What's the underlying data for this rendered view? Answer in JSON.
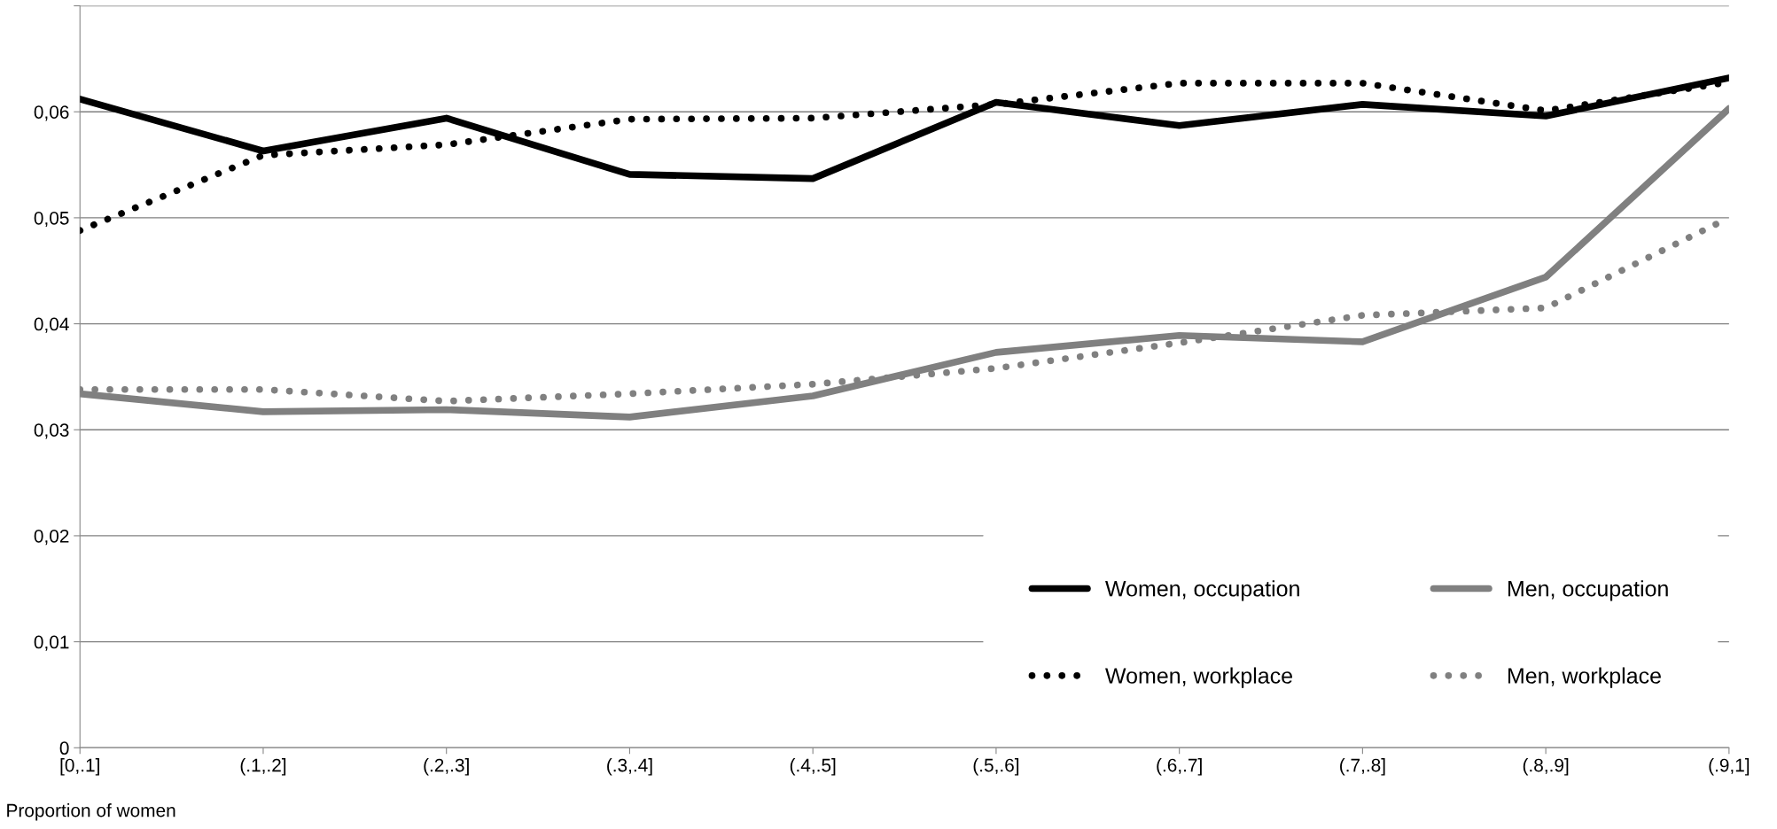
{
  "chart_data": {
    "type": "line",
    "xlabel": "Proportion of women",
    "categories": [
      "[0,.1]",
      "(.1,.2]",
      "(.2,.3]",
      "(.3,.4]",
      "(.4,.5]",
      "(.5,.6]",
      "(.6,.7]",
      "(.7,.8]",
      "(.8,.9]",
      "(.9,1]"
    ],
    "series": [
      {
        "name": "Women, occupation",
        "color": "#000000",
        "line_style": "solid",
        "values": [
          0.0612,
          0.0563,
          0.0594,
          0.0541,
          0.0537,
          0.0609,
          0.0587,
          0.0607,
          0.0596,
          0.0632
        ]
      },
      {
        "name": "Women, workplace",
        "color": "#000000",
        "line_style": "dotted",
        "values": [
          0.0488,
          0.0559,
          0.0569,
          0.0593,
          0.0594,
          0.0607,
          0.0627,
          0.0627,
          0.0601,
          0.0628
        ]
      },
      {
        "name": "Men, occupation",
        "color": "#808080",
        "line_style": "solid",
        "values": [
          0.0334,
          0.0317,
          0.0319,
          0.0312,
          0.0332,
          0.0373,
          0.0389,
          0.0383,
          0.0444,
          0.0603
        ]
      },
      {
        "name": "Men, workplace",
        "color": "#808080",
        "line_style": "dotted",
        "values": [
          0.0338,
          0.0338,
          0.0327,
          0.0334,
          0.0343,
          0.0358,
          0.0382,
          0.0408,
          0.0415,
          0.05
        ]
      }
    ],
    "ylim": [
      0,
      0.07
    ],
    "yticks": [
      0,
      {
        "value": 0.01,
        "label": "0,01"
      },
      {
        "value": 0.02,
        "label": "0,02"
      },
      {
        "value": 0.03,
        "label": "0,03"
      },
      {
        "value": 0.04,
        "label": "0,04"
      },
      {
        "value": 0.05,
        "label": "0,05"
      },
      {
        "value": 0.06,
        "label": "0,06"
      },
      {
        "value": 0.07,
        "label": null
      }
    ],
    "grid": "y",
    "legend": "bottom right",
    "marker": "none"
  }
}
